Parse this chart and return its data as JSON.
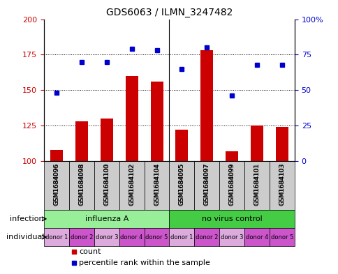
{
  "title": "GDS6063 / ILMN_3247482",
  "samples": [
    "GSM1684096",
    "GSM1684098",
    "GSM1684100",
    "GSM1684102",
    "GSM1684104",
    "GSM1684095",
    "GSM1684097",
    "GSM1684099",
    "GSM1684101",
    "GSM1684103"
  ],
  "counts": [
    108,
    128,
    130,
    160,
    156,
    122,
    178,
    107,
    125,
    124
  ],
  "percentiles": [
    48,
    70,
    70,
    79,
    78,
    65,
    80,
    46,
    68,
    68
  ],
  "ylim_left": [
    100,
    200
  ],
  "ylim_right": [
    0,
    100
  ],
  "yticks_left": [
    100,
    125,
    150,
    175,
    200
  ],
  "yticks_right": [
    0,
    25,
    50,
    75,
    100
  ],
  "ytick_labels_left": [
    "100",
    "125",
    "150",
    "175",
    "200"
  ],
  "ytick_labels_right": [
    "0",
    "25",
    "50",
    "75",
    "100%"
  ],
  "bar_color": "#cc0000",
  "dot_color": "#0000cc",
  "infection_groups": [
    {
      "label": "influenza A",
      "start": 0,
      "end": 5,
      "color": "#99ee99"
    },
    {
      "label": "no virus control",
      "start": 5,
      "end": 10,
      "color": "#44cc44"
    }
  ],
  "donors": [
    "donor 1",
    "donor 2",
    "donor 3",
    "donor 4",
    "donor 5",
    "donor 1",
    "donor 2",
    "donor 3",
    "donor 4",
    "donor 5"
  ],
  "donor_colors": [
    "#ee99ee",
    "#ee55ee",
    "#ee99ee",
    "#ee55ee",
    "#ee55ee",
    "#ee99ee",
    "#ee55ee",
    "#ee99ee",
    "#ee55ee",
    "#ee55ee"
  ],
  "grid_color": "#888888",
  "bg_color": "#ffffff",
  "label_infection": "infection",
  "label_individual": "individual",
  "legend_count": "count",
  "legend_percentile": "percentile rank within the sample"
}
